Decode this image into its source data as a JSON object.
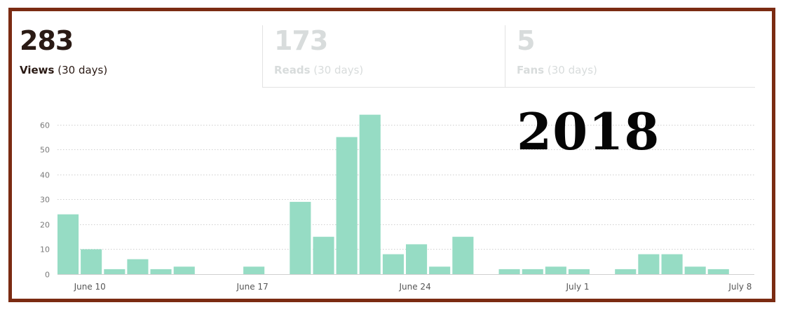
{
  "tabs": [
    {
      "value": "283",
      "name": "Views",
      "period": "(30 days)",
      "active": true
    },
    {
      "value": "173",
      "name": "Reads",
      "period": "(30 days)",
      "active": false
    },
    {
      "value": "5",
      "name": "Fans",
      "period": "(30 days)",
      "active": false
    }
  ],
  "annotation": "2018",
  "colors": {
    "bar": "#96dcc4",
    "frame": "#7b2b12",
    "grid": "#cfcfcf"
  },
  "chart_data": {
    "type": "bar",
    "title": "",
    "xlabel": "",
    "ylabel": "",
    "ylim": [
      0,
      65
    ],
    "yticks": [
      0,
      10,
      20,
      30,
      40,
      50,
      60
    ],
    "grid": true,
    "categories": [
      "June 9",
      "June 10",
      "June 11",
      "June 12",
      "June 13",
      "June 14",
      "June 15",
      "June 16",
      "June 17",
      "June 18",
      "June 19",
      "June 20",
      "June 21",
      "June 22",
      "June 23",
      "June 24",
      "June 25",
      "June 26",
      "June 27",
      "June 28",
      "June 29",
      "June 30",
      "July 1",
      "July 2",
      "July 3",
      "July 4",
      "July 5",
      "July 6",
      "July 7",
      "July 8"
    ],
    "values": [
      24,
      10,
      2,
      6,
      2,
      3,
      0,
      0,
      3,
      0,
      29,
      15,
      55,
      64,
      8,
      12,
      3,
      15,
      0,
      2,
      2,
      3,
      2,
      0,
      2,
      8,
      8,
      3,
      2,
      0
    ],
    "xtick_labels": [
      {
        "category": "June 10",
        "label": "June 10"
      },
      {
        "category": "June 17",
        "label": "June 17"
      },
      {
        "category": "June 24",
        "label": "June 24"
      },
      {
        "category": "July 1",
        "label": "July 1"
      },
      {
        "category": "July 8",
        "label": "July 8"
      }
    ]
  }
}
